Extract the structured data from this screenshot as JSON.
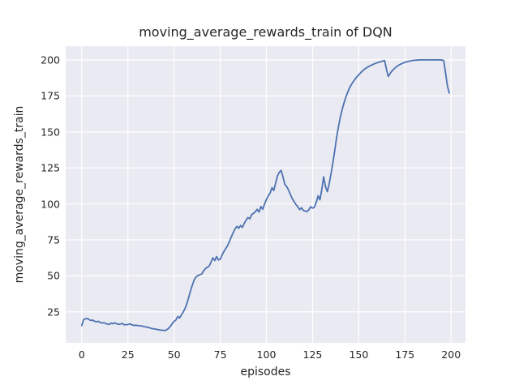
{
  "figure": {
    "background_color": "#ffffff",
    "axes_background_color": "#eaeaf2",
    "grid_color": "#ffffff",
    "text_color": "#262626"
  },
  "chart_data": {
    "type": "line",
    "title": "moving_average_rewards_train of DQN",
    "xlabel": "episodes",
    "ylabel": "moving_average_rewards_train",
    "grid": true,
    "legend": null,
    "xlim": [
      -8.7,
      207.8
    ],
    "ylim": [
      3.5,
      209.5
    ],
    "x_ticks": [
      0,
      25,
      50,
      75,
      100,
      125,
      150,
      175,
      200
    ],
    "y_ticks": [
      25,
      50,
      75,
      100,
      125,
      150,
      175,
      200
    ],
    "series": [
      {
        "name": "moving_average_rewards_train",
        "color": "#4c72b0",
        "points": [
          [
            0,
            15.5
          ],
          [
            1,
            19.6
          ],
          [
            2,
            20.2
          ],
          [
            3,
            20.4
          ],
          [
            4,
            19.6
          ],
          [
            5,
            19.0
          ],
          [
            6,
            19.3
          ],
          [
            7,
            18.4
          ],
          [
            8,
            18.1
          ],
          [
            9,
            18.4
          ],
          [
            10,
            17.6
          ],
          [
            11,
            17.2
          ],
          [
            12,
            17.5
          ],
          [
            13,
            16.8
          ],
          [
            14,
            16.5
          ],
          [
            15,
            16.3
          ],
          [
            16,
            17.2
          ],
          [
            17,
            16.8
          ],
          [
            18,
            17.3
          ],
          [
            19,
            16.7
          ],
          [
            20,
            16.3
          ],
          [
            21,
            16.6
          ],
          [
            22,
            16.9
          ],
          [
            23,
            16.0
          ],
          [
            24,
            16.1
          ],
          [
            25,
            16.2
          ],
          [
            26,
            16.7
          ],
          [
            27,
            16.1
          ],
          [
            28,
            15.6
          ],
          [
            29,
            15.7
          ],
          [
            30,
            15.6
          ],
          [
            31,
            15.4
          ],
          [
            32,
            15.3
          ],
          [
            33,
            15.0
          ],
          [
            34,
            14.6
          ],
          [
            35,
            14.5
          ],
          [
            36,
            14.2
          ],
          [
            37,
            13.8
          ],
          [
            38,
            13.4
          ],
          [
            39,
            13.2
          ],
          [
            40,
            13.0
          ],
          [
            41,
            12.7
          ],
          [
            42,
            12.5
          ],
          [
            43,
            12.3
          ],
          [
            44,
            12.2
          ],
          [
            45,
            12.0
          ],
          [
            46,
            12.6
          ],
          [
            47,
            13.5
          ],
          [
            48,
            15.0
          ],
          [
            49,
            16.8
          ],
          [
            50,
            18.4
          ],
          [
            51,
            19.4
          ],
          [
            52,
            21.8
          ],
          [
            53,
            20.7
          ],
          [
            54,
            23.0
          ],
          [
            55,
            25.0
          ],
          [
            56,
            27.5
          ],
          [
            57,
            31.0
          ],
          [
            58,
            35.5
          ],
          [
            59,
            40.0
          ],
          [
            60,
            44.0
          ],
          [
            61,
            47.5
          ],
          [
            62,
            49.4
          ],
          [
            63,
            50.3
          ],
          [
            64,
            50.8
          ],
          [
            65,
            51.3
          ],
          [
            66,
            53.5
          ],
          [
            67,
            55.0
          ],
          [
            68,
            56.0
          ],
          [
            69,
            56.8
          ],
          [
            70,
            59.5
          ],
          [
            71,
            62.5
          ],
          [
            72,
            60.6
          ],
          [
            73,
            63.4
          ],
          [
            74,
            61.0
          ],
          [
            75,
            61.5
          ],
          [
            76,
            64.5
          ],
          [
            77,
            67.0
          ],
          [
            78,
            69.0
          ],
          [
            79,
            71.0
          ],
          [
            80,
            74.0
          ],
          [
            81,
            77.0
          ],
          [
            82,
            80.0
          ],
          [
            83,
            82.5
          ],
          [
            84,
            84.4
          ],
          [
            85,
            83.1
          ],
          [
            86,
            85.0
          ],
          [
            87,
            83.6
          ],
          [
            88,
            86.5
          ],
          [
            89,
            88.7
          ],
          [
            90,
            90.5
          ],
          [
            91,
            89.6
          ],
          [
            92,
            92.5
          ],
          [
            93,
            93.4
          ],
          [
            94,
            94.5
          ],
          [
            95,
            96.2
          ],
          [
            96,
            94.3
          ],
          [
            97,
            98.1
          ],
          [
            98,
            96.2
          ],
          [
            99,
            100.0
          ],
          [
            100,
            103.0
          ],
          [
            101,
            105.6
          ],
          [
            102,
            107.5
          ],
          [
            103,
            111.2
          ],
          [
            104,
            109.3
          ],
          [
            105,
            114.5
          ],
          [
            106,
            119.5
          ],
          [
            107,
            122.0
          ],
          [
            108,
            123.3
          ],
          [
            109,
            118.5
          ],
          [
            110,
            113.5
          ],
          [
            111,
            112.0
          ],
          [
            112,
            109.5
          ],
          [
            113,
            106.5
          ],
          [
            114,
            103.7
          ],
          [
            115,
            101.5
          ],
          [
            116,
            99.5
          ],
          [
            117,
            98.0
          ],
          [
            118,
            96.0
          ],
          [
            119,
            97.3
          ],
          [
            120,
            95.4
          ],
          [
            121,
            95.0
          ],
          [
            122,
            94.7
          ],
          [
            123,
            95.9
          ],
          [
            124,
            98.0
          ],
          [
            125,
            97.0
          ],
          [
            126,
            97.8
          ],
          [
            127,
            101.0
          ],
          [
            128,
            105.6
          ],
          [
            129,
            102.8
          ],
          [
            130,
            110.0
          ],
          [
            131,
            118.8
          ],
          [
            132,
            112.0
          ],
          [
            133,
            108.4
          ],
          [
            134,
            114.0
          ],
          [
            135,
            121.0
          ],
          [
            136,
            128.5
          ],
          [
            137,
            137.0
          ],
          [
            138,
            146.0
          ],
          [
            139,
            153.5
          ],
          [
            140,
            160.0
          ],
          [
            141,
            165.5
          ],
          [
            142,
            170.0
          ],
          [
            143,
            174.0
          ],
          [
            144,
            177.5
          ],
          [
            145,
            180.5
          ],
          [
            146,
            182.8
          ],
          [
            147,
            184.8
          ],
          [
            148,
            186.6
          ],
          [
            149,
            188.2
          ],
          [
            150,
            189.6
          ],
          [
            151,
            191.0
          ],
          [
            152,
            192.3
          ],
          [
            153,
            193.4
          ],
          [
            154,
            194.3
          ],
          [
            155,
            195.1
          ],
          [
            156,
            195.8
          ],
          [
            157,
            196.4
          ],
          [
            158,
            197.0
          ],
          [
            159,
            197.5
          ],
          [
            160,
            198.0
          ],
          [
            161,
            198.4
          ],
          [
            162,
            198.8
          ],
          [
            163,
            199.2
          ],
          [
            164,
            199.5
          ],
          [
            165,
            193.5
          ],
          [
            166,
            188.5
          ],
          [
            167,
            190.5
          ],
          [
            168,
            192.3
          ],
          [
            169,
            193.6
          ],
          [
            170,
            194.8
          ],
          [
            171,
            195.8
          ],
          [
            172,
            196.6
          ],
          [
            173,
            197.2
          ],
          [
            174,
            197.8
          ],
          [
            175,
            198.3
          ],
          [
            176,
            198.7
          ],
          [
            177,
            199.0
          ],
          [
            178,
            199.3
          ],
          [
            179,
            199.5
          ],
          [
            180,
            199.7
          ],
          [
            181,
            199.8
          ],
          [
            182,
            199.9
          ],
          [
            183,
            200.0
          ],
          [
            185,
            200.0
          ],
          [
            187,
            200.0
          ],
          [
            189,
            200.0
          ],
          [
            191,
            200.0
          ],
          [
            193,
            200.0
          ],
          [
            195,
            199.9
          ],
          [
            196,
            199.5
          ],
          [
            197,
            191.0
          ],
          [
            198,
            182.0
          ],
          [
            199,
            177.0
          ]
        ]
      }
    ]
  }
}
